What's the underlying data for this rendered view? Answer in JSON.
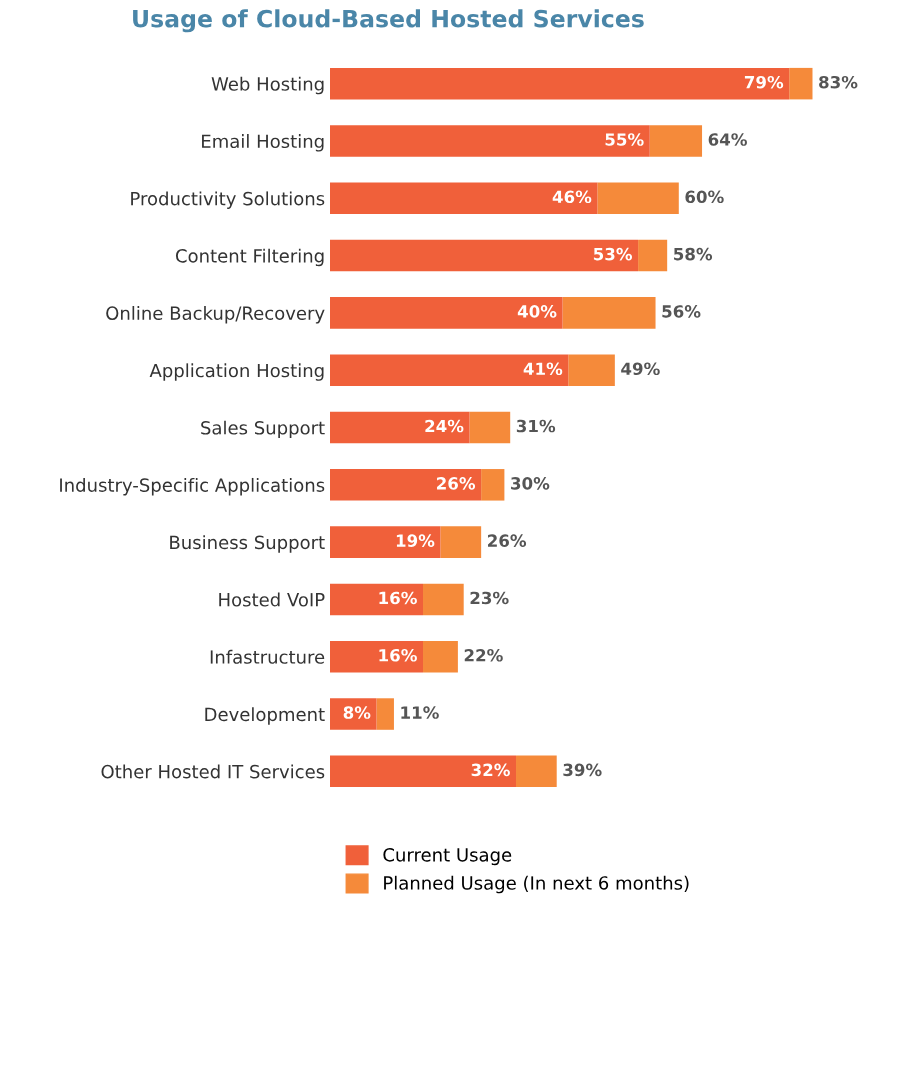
{
  "chart_data": {
    "type": "bar",
    "orientation": "horizontal",
    "stacked": true,
    "title": "Usage of Cloud-Based Hosted Services",
    "categories": [
      "Web Hosting",
      "Email Hosting",
      "Productivity Solutions",
      "Content Filtering",
      "Online Backup/Recovery",
      "Application Hosting",
      "Sales Support",
      "Industry-Specific Applications",
      "Business Support",
      "Hosted VoIP",
      "Infastructure",
      "Development",
      "Other Hosted IT Services"
    ],
    "series": [
      {
        "name": "Current Usage",
        "color": "#f0603a",
        "values": [
          79,
          55,
          46,
          53,
          40,
          41,
          24,
          26,
          19,
          16,
          16,
          8,
          32
        ],
        "value_labels": [
          "79%",
          "55%",
          "46%",
          "53%",
          "40%",
          "41%",
          "24%",
          "26%",
          "19%",
          "16%",
          "16%",
          "8%",
          "32%"
        ]
      },
      {
        "name": "Planned Usage (In next 6 months)",
        "color": "#f58a3a",
        "values": [
          4,
          9,
          14,
          5,
          16,
          8,
          7,
          4,
          7,
          7,
          6,
          3,
          7
        ]
      }
    ],
    "totals": [
      "83%",
      "64%",
      "60%",
      "58%",
      "56%",
      "49%",
      "31%",
      "30%",
      "26%",
      "23%",
      "22%",
      "11%",
      "39%"
    ],
    "tick_labels": "y",
    "legend": "bottom",
    "grid": false
  }
}
